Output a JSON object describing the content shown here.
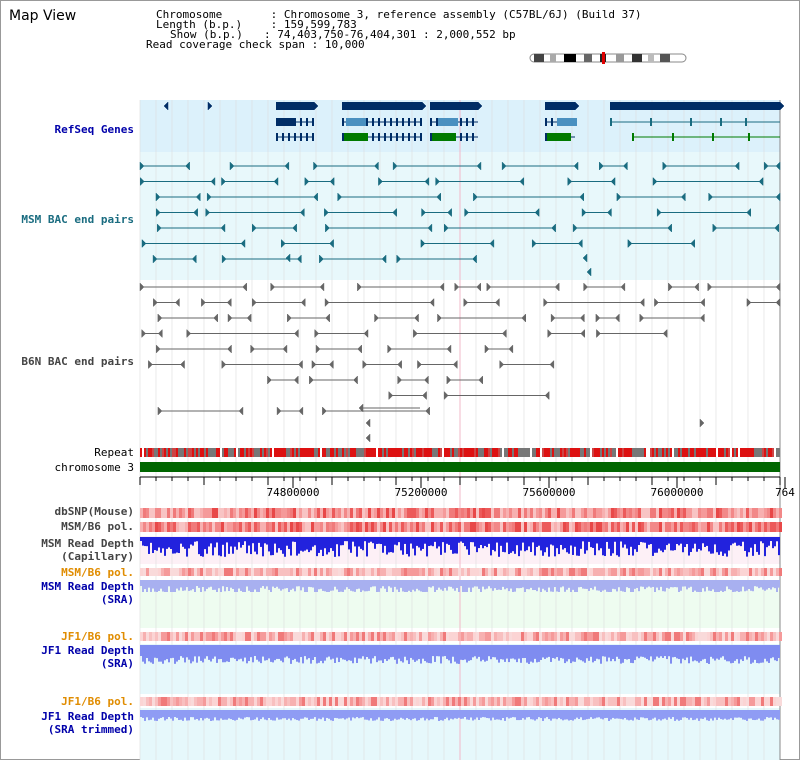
{
  "page": {
    "title": "Map View"
  },
  "info": {
    "chromosome_label": "Chromosome",
    "chromosome_value": "Chromosome 3, reference assembly (C57BL/6J) (Build 37)",
    "length_label": "Length (b.p.)",
    "length_value": "159,599,783",
    "show_label": "Show (b.p.)",
    "show_value": "74,403,750-76,404,301 : 2,000,552 bp",
    "coverage_label": "Read coverage check span",
    "coverage_value": "10,000"
  },
  "tracks": {
    "refseq": "RefSeq Genes",
    "msm_bac": "MSM BAC end pairs",
    "b6n_bac": "B6N BAC end pairs",
    "repeat": "Repeat",
    "chromosome": "chromosome 3",
    "dbsnp": "dbSNP(Mouse)",
    "msm_b6_pol_1": "MSM/B6 pol.",
    "msm_depth_cap_1": "MSM Read Depth",
    "msm_depth_cap_2": "(Capillary)",
    "msm_b6_pol_2": "MSM/B6 pol.",
    "msm_depth_sra_1": "MSM Read Depth",
    "msm_depth_sra_2": "(SRA)",
    "jf1_b6_pol_1": "JF1/B6 pol.",
    "jf1_depth_sra_1": "JF1 Read Depth",
    "jf1_depth_sra_2": "(SRA)",
    "jf1_b6_pol_2": "JF1/B6 pol.",
    "jf1_depth_trim_1": "JF1 Read Depth",
    "jf1_depth_trim_2": "(SRA trimmed)"
  },
  "ruler": {
    "tick_labels": [
      "74800000",
      "75200000",
      "75600000",
      "76000000",
      "764"
    ]
  },
  "colors": {
    "refseq_bg": "#dcf1fb",
    "bac_bg": "#e8f8fb",
    "gene_dark": "#002d66",
    "gene_mid": "#4a90c0",
    "gene_green": "#007a00",
    "msm_bac": "#1a6c80",
    "b6n_bac": "#666666",
    "chromosome": "#006600",
    "label_blue": "#0000aa",
    "label_teal": "#1a6c80",
    "label_orange": "#e08c00",
    "label_gray": "#444444"
  }
}
